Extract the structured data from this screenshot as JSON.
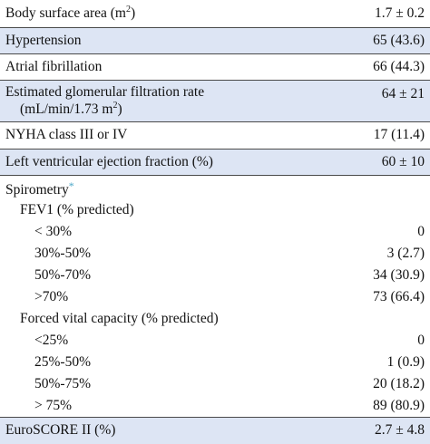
{
  "rows": [
    {
      "label": "Body surface area (m",
      "sup": "2",
      "label_end": ")",
      "value": "1.7 ± 0.2"
    },
    {
      "label": "Hypertension",
      "value": "65 (43.6)"
    },
    {
      "label": "Atrial fibrillation",
      "value": "66 (44.3)"
    },
    {
      "label": "Estimated glomerular filtration rate",
      "label2": "(mL/min/1.73 m",
      "sup": "2",
      "label2_end": ")",
      "value": "64 ± 21"
    },
    {
      "label": "NYHA class III or IV",
      "value": "17 (11.4)"
    },
    {
      "label": "Left ventricular ejection fraction (%)",
      "value": "60 ± 10"
    },
    {
      "label": "Spirometry",
      "marker": "*",
      "value": ""
    },
    {
      "label": "FEV1 (% predicted)",
      "value": ""
    },
    {
      "label": "< 30%",
      "value": "0"
    },
    {
      "label": "30%-50%",
      "value": "3 (2.7)"
    },
    {
      "label": "50%-70%",
      "value": "34 (30.9)"
    },
    {
      "label": ">70%",
      "value": "73 (66.4)"
    },
    {
      "label": "Forced vital capacity (% predicted)",
      "value": ""
    },
    {
      "label": "<25%",
      "value": "0"
    },
    {
      "label": "25%-50%",
      "value": "1 (0.9)"
    },
    {
      "label": "50%-75%",
      "value": "20 (18.2)"
    },
    {
      "label": "> 75%",
      "value": "89 (80.9)"
    },
    {
      "label": "EuroSCORE II (%)",
      "value": "2.7 ± 4.8"
    }
  ]
}
